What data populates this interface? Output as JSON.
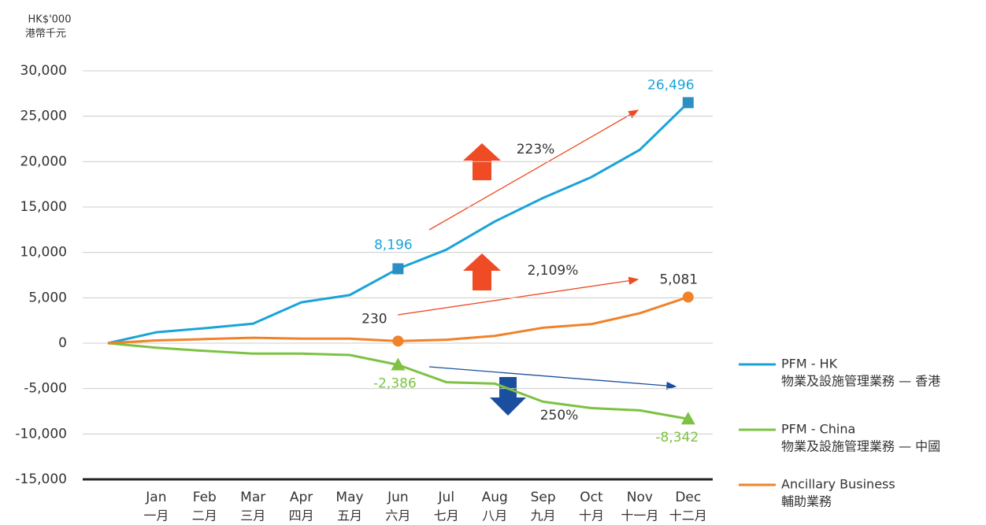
{
  "chart_data": {
    "type": "line",
    "unit_label": "HK$'000",
    "unit_label_cn": "港幣千元",
    "categories": [
      null,
      "Jan",
      "Feb",
      "Mar",
      "Apr",
      "May",
      "Jun",
      "Jul",
      "Aug",
      "Sep",
      "Oct",
      "Nov",
      "Dec"
    ],
    "categories_cn": [
      null,
      "一月",
      "二月",
      "三月",
      "四月",
      "五月",
      "六月",
      "七月",
      "八月",
      "九月",
      "十月",
      "十一月",
      "十二月"
    ],
    "ylim": [
      -15000,
      30000
    ],
    "yticks": [
      {
        "value": -15000,
        "label": "-15,000"
      },
      {
        "value": -10000,
        "label": "-10,000"
      },
      {
        "value": -5000,
        "label": "-5,000"
      },
      0,
      {
        "value": 5000,
        "label": "5,000"
      },
      {
        "value": 10000,
        "label": "10,000"
      },
      {
        "value": 15000,
        "label": "15,000"
      },
      {
        "value": 20000,
        "label": "20,000"
      },
      {
        "value": 25000,
        "label": "25,000"
      },
      {
        "value": 30000,
        "label": "30,000"
      }
    ],
    "grid": true,
    "series": [
      {
        "name": "PFM - HK",
        "name_cn": "物業及設施管理業務 — 香港",
        "color": "#1ba3d8",
        "marker": "square",
        "marker_color": "#2c8fc4",
        "values": [
          0,
          1200,
          1650,
          2150,
          4500,
          5300,
          8196,
          10300,
          13400,
          16000,
          18300,
          21300,
          26496
        ],
        "value_labels": [
          null,
          null,
          null,
          null,
          null,
          null,
          "8,196",
          null,
          null,
          null,
          null,
          null,
          "26,496"
        ]
      },
      {
        "name": "PFM - China",
        "name_cn": "物業及設施管理業務 — 中國",
        "color": "#7dc242",
        "marker": "triangle",
        "marker_color": "#7dc242",
        "values": [
          0,
          -500,
          -850,
          -1150,
          -1150,
          -1300,
          -2386,
          -4300,
          -4450,
          -6450,
          -7150,
          -7400,
          -8342
        ],
        "value_labels": [
          null,
          null,
          null,
          null,
          null,
          null,
          "-2,386",
          null,
          null,
          null,
          null,
          null,
          "-8,342"
        ]
      },
      {
        "name": "Ancillary Business",
        "name_cn": "輔助業務",
        "color": "#f0822a",
        "marker": "circle",
        "marker_color": "#f0822a",
        "values": [
          0,
          300,
          450,
          600,
          500,
          500,
          230,
          380,
          800,
          1700,
          2100,
          3300,
          5081
        ],
        "value_labels": [
          null,
          null,
          null,
          null,
          null,
          null,
          "230",
          null,
          null,
          null,
          null,
          null,
          "5,081"
        ]
      }
    ],
    "annotations": [
      "223%",
      "2,109%",
      "250%"
    ]
  }
}
